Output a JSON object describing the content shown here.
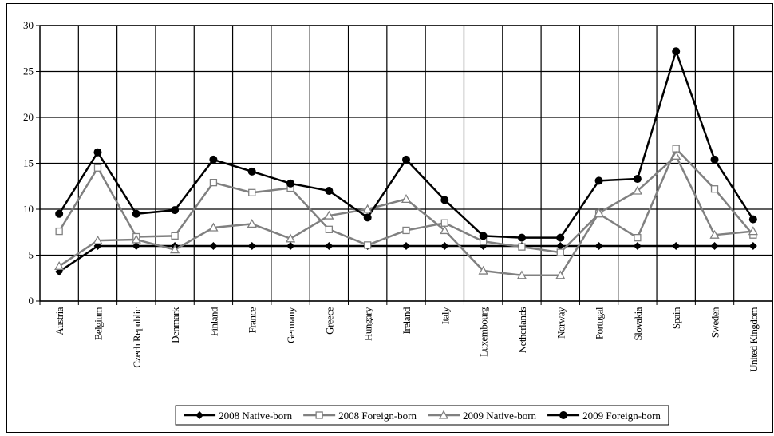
{
  "chart_data": {
    "type": "line",
    "categories": [
      "Austria",
      "Belgium",
      "Czech Republic",
      "Denmark",
      "Finland",
      "France",
      "Germany",
      "Greece",
      "Hungary",
      "Ireland",
      "Italy",
      "Luxembourg",
      "Netherlands",
      "Norway",
      "Portugal",
      "Slovakia",
      "Spain",
      "Sweden",
      "United Kingdom"
    ],
    "series": [
      {
        "name": "2008 Native-born",
        "color": "#000000",
        "marker": "diamond",
        "values": [
          3.2,
          6,
          6,
          6,
          6,
          6,
          6,
          6,
          6,
          6,
          6,
          6,
          6,
          6,
          6,
          6,
          6,
          6,
          6
        ]
      },
      {
        "name": "2008 Foreign-born",
        "color": "#808080",
        "marker": "square",
        "values": [
          7.6,
          14.5,
          7.0,
          7.1,
          12.9,
          11.8,
          12.3,
          7.8,
          6.1,
          7.7,
          8.5,
          6.5,
          5.9,
          5.3,
          9.5,
          6.9,
          16.6,
          12.2,
          7.2
        ]
      },
      {
        "name": "2009 Native-born",
        "color": "#808080",
        "marker": "triangle",
        "values": [
          3.8,
          6.6,
          6.7,
          5.6,
          8.0,
          8.4,
          6.8,
          9.3,
          10.0,
          11.1,
          7.7,
          3.3,
          2.8,
          2.8,
          9.6,
          12.0,
          15.8,
          7.2,
          7.6
        ]
      },
      {
        "name": "2009 Foreign-born",
        "color": "#000000",
        "marker": "circle",
        "values": [
          9.5,
          16.2,
          9.5,
          9.9,
          15.4,
          14.1,
          12.8,
          12.0,
          9.1,
          15.4,
          11.0,
          7.1,
          6.9,
          6.9,
          13.1,
          13.3,
          27.2,
          15.4,
          8.9
        ]
      }
    ],
    "ylim": [
      0,
      30
    ],
    "yticks": [
      0,
      5,
      10,
      15,
      20,
      25,
      30
    ],
    "grid": true,
    "legend": "bottom"
  }
}
